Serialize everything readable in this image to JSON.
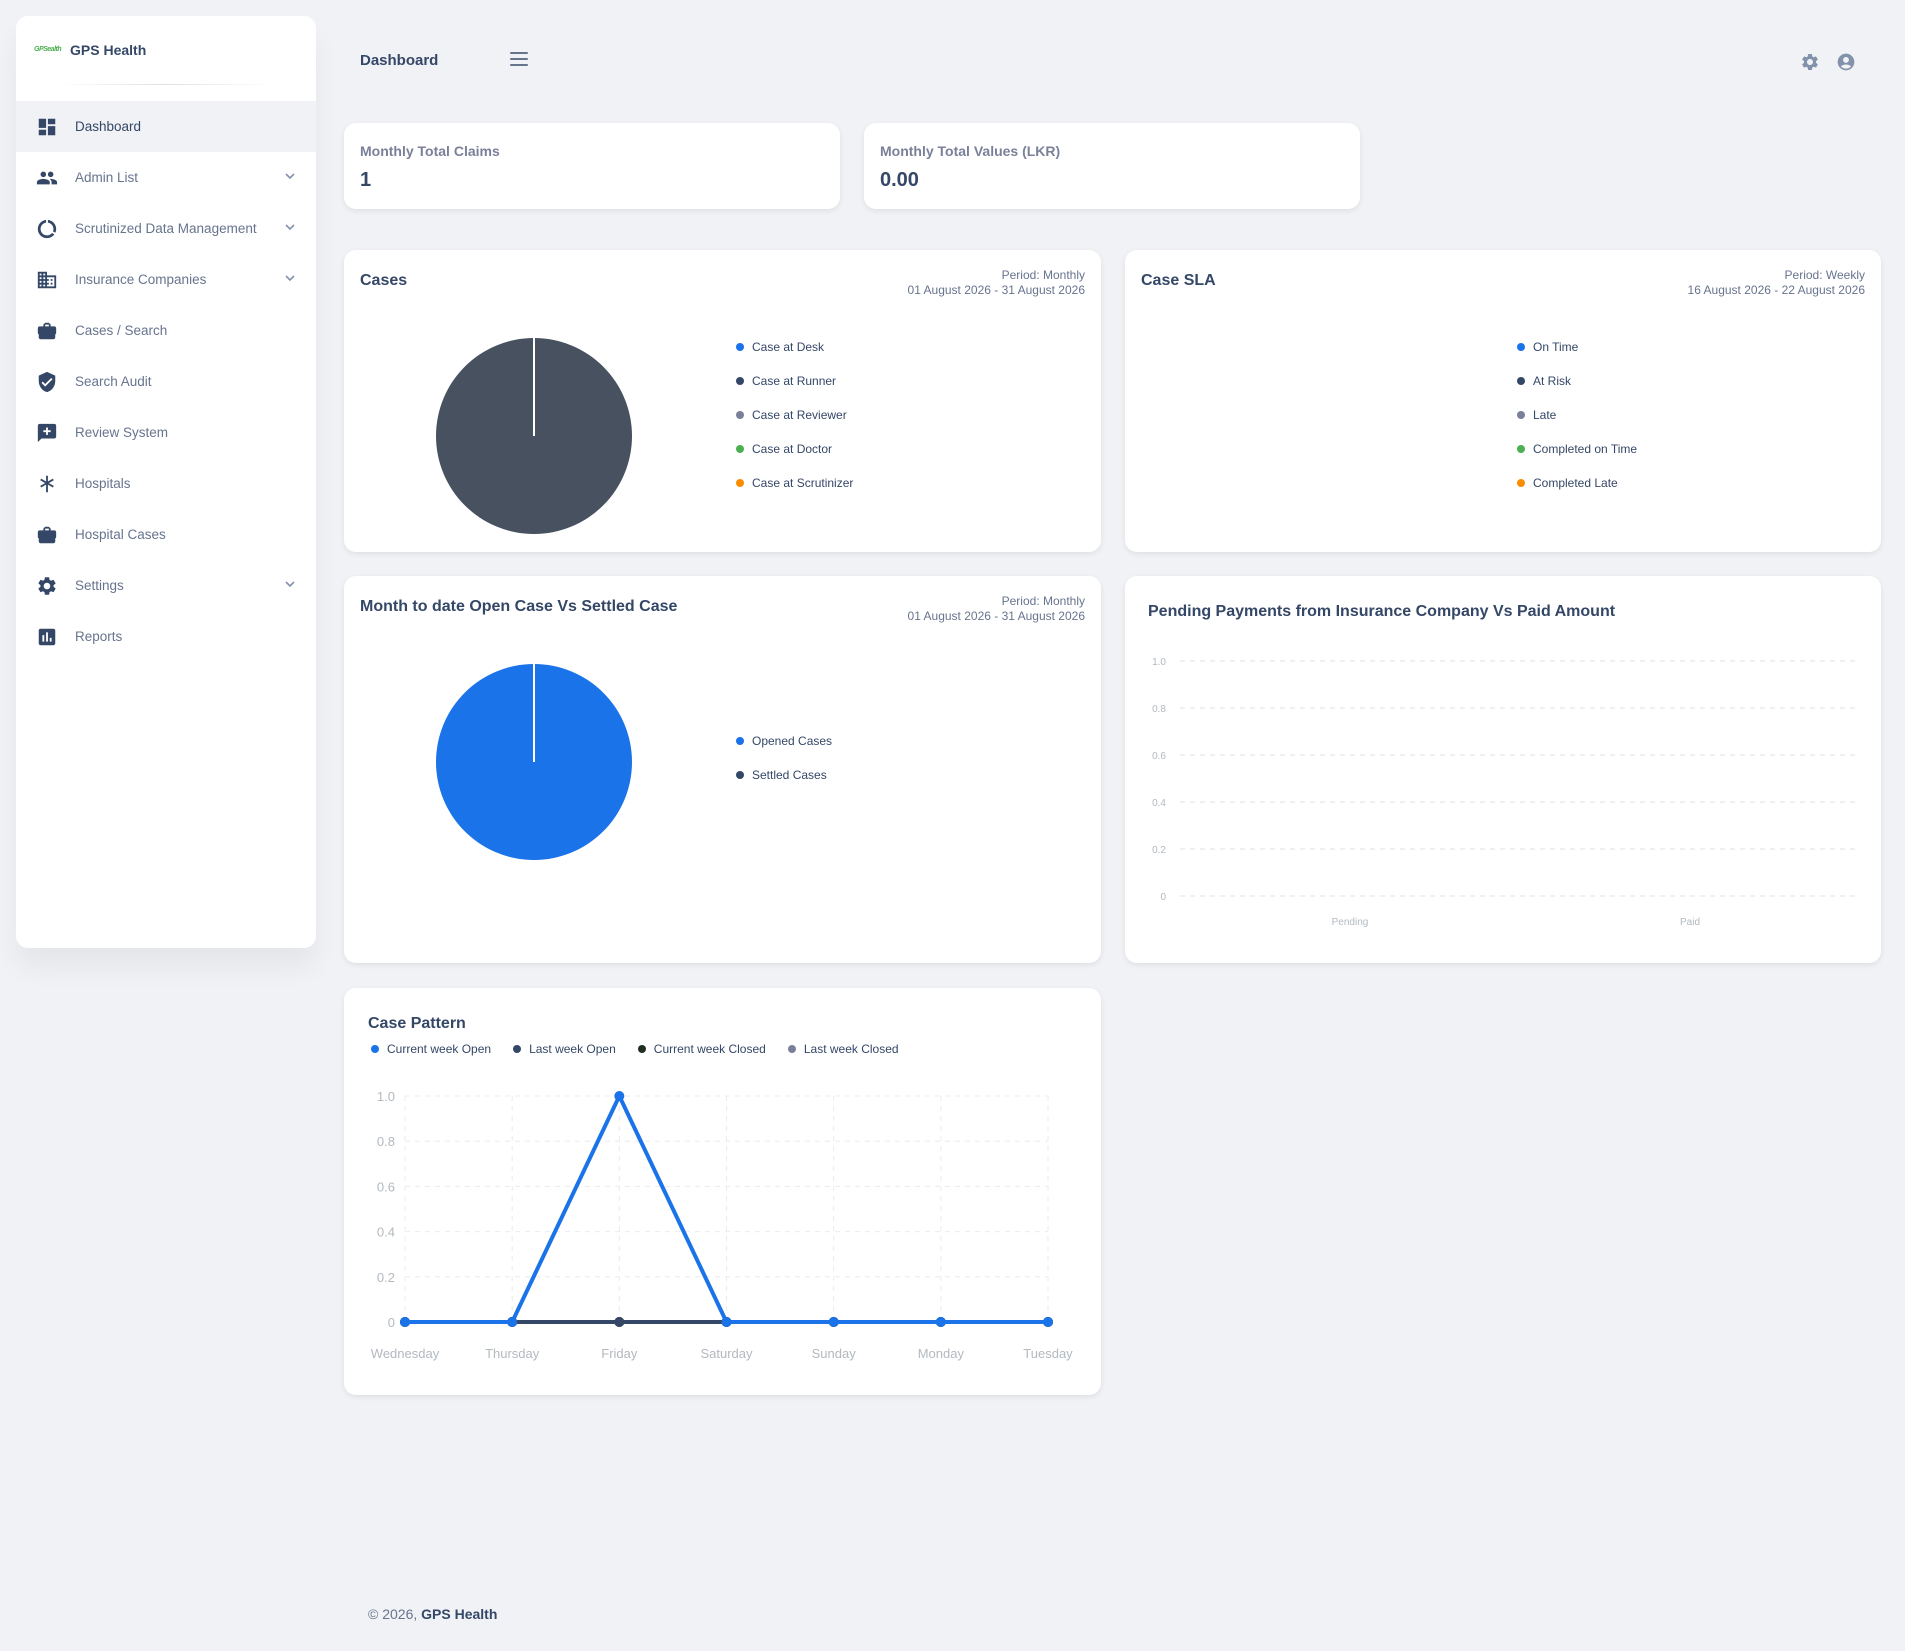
{
  "brand": {
    "logo_text": "GPSealth",
    "name": "GPS Health"
  },
  "sidebar": {
    "items": [
      {
        "label": "Dashboard",
        "icon": "dashboard-icon",
        "active": true,
        "expandable": false
      },
      {
        "label": "Admin List",
        "icon": "people-icon",
        "active": false,
        "expandable": true
      },
      {
        "label": "Scrutinized Data Management",
        "icon": "donut-icon",
        "active": false,
        "expandable": true
      },
      {
        "label": "Insurance Companies",
        "icon": "building-icon",
        "active": false,
        "expandable": true
      },
      {
        "label": "Cases / Search",
        "icon": "briefcase-icon",
        "active": false,
        "expandable": false
      },
      {
        "label": "Search Audit",
        "icon": "shield-icon",
        "active": false,
        "expandable": false
      },
      {
        "label": "Review System",
        "icon": "review-icon",
        "active": false,
        "expandable": false
      },
      {
        "label": "Hospitals",
        "icon": "asterisk-icon",
        "active": false,
        "expandable": false
      },
      {
        "label": "Hospital Cases",
        "icon": "briefcase-icon",
        "active": false,
        "expandable": false
      },
      {
        "label": "Settings",
        "icon": "gear-icon",
        "active": false,
        "expandable": true
      },
      {
        "label": "Reports",
        "icon": "bar-chart-icon",
        "active": false,
        "expandable": false
      }
    ]
  },
  "header": {
    "title": "Dashboard"
  },
  "stats": {
    "claims": {
      "label": "Monthly Total Claims",
      "value": "1"
    },
    "values": {
      "label": "Monthly Total Values (LKR)",
      "value": "0.00"
    }
  },
  "cases_card": {
    "title": "Cases",
    "period": "Period: Monthly",
    "range": "01 August 2026 - 31 August 2026"
  },
  "sla_card": {
    "title": "Case SLA",
    "period": "Period: Weekly",
    "range": "16 August 2026 - 22 August 2026"
  },
  "open_settled_card": {
    "title": "Month to date Open Case Vs Settled Case",
    "period": "Period: Monthly",
    "range": "01 August 2026 - 31 August 2026"
  },
  "payments_card": {
    "title": "Pending Payments from Insurance Company Vs Paid Amount"
  },
  "pattern_card": {
    "title": "Case Pattern"
  },
  "colors": {
    "blue": "#1a73e8",
    "dark": "#344767",
    "gray": "#7b809a",
    "green": "#4caf50",
    "orange": "#fb8c00",
    "pie_dark": "#475160",
    "black_green": "#1f2e1f"
  },
  "chart_data": [
    {
      "type": "pie",
      "legend": [
        "Case at Desk",
        "Case at Runner",
        "Case at Reviewer",
        "Case at Doctor",
        "Case at Scrutinizer"
      ],
      "legend_colors": [
        "#1a73e8",
        "#344767",
        "#7b809a",
        "#4caf50",
        "#fb8c00"
      ],
      "values": [
        0,
        1,
        0,
        0,
        0
      ]
    },
    {
      "type": "pie",
      "legend": [
        "On Time",
        "At Risk",
        "Late",
        "Completed on Time",
        "Completed Late"
      ],
      "legend_colors": [
        "#1a73e8",
        "#344767",
        "#7b809a",
        "#4caf50",
        "#fb8c00"
      ],
      "values": [
        0,
        0,
        0,
        0,
        0
      ]
    },
    {
      "type": "pie",
      "legend": [
        "Opened Cases",
        "Settled Cases"
      ],
      "legend_colors": [
        "#1a73e8",
        "#344767"
      ],
      "values": [
        1,
        0
      ]
    },
    {
      "type": "bar",
      "categories": [
        "Pending",
        "Paid"
      ],
      "values": [
        0,
        0
      ],
      "yticks": [
        "1.0",
        "0.8",
        "0.6",
        "0.4",
        "0.2",
        "0"
      ],
      "ylim": [
        0,
        1
      ],
      "grid": true
    },
    {
      "type": "line",
      "categories": [
        "Wednesday",
        "Thursday",
        "Friday",
        "Saturday",
        "Sunday",
        "Monday",
        "Tuesday"
      ],
      "yticks": [
        "1.0",
        "0.8",
        "0.6",
        "0.4",
        "0.2",
        "0"
      ],
      "ylim": [
        0,
        1
      ],
      "grid": true,
      "legend_placement": "top-left",
      "series": [
        {
          "name": "Current week Open",
          "color": "#1a73e8",
          "values": [
            0,
            0,
            1,
            0,
            0,
            0,
            0
          ]
        },
        {
          "name": "Last week Open",
          "color": "#344767",
          "values": [
            0,
            0,
            0,
            0,
            0,
            0,
            0
          ]
        },
        {
          "name": "Current week Closed",
          "color": "#1f2e1f",
          "values": [
            0,
            0,
            0,
            0,
            0,
            0,
            0
          ]
        },
        {
          "name": "Last week Closed",
          "color": "#7b809a",
          "values": [
            0,
            0,
            0,
            0,
            0,
            0,
            0
          ]
        }
      ]
    }
  ],
  "footer": {
    "copyright": "© 2026,",
    "brand": "GPS Health"
  }
}
